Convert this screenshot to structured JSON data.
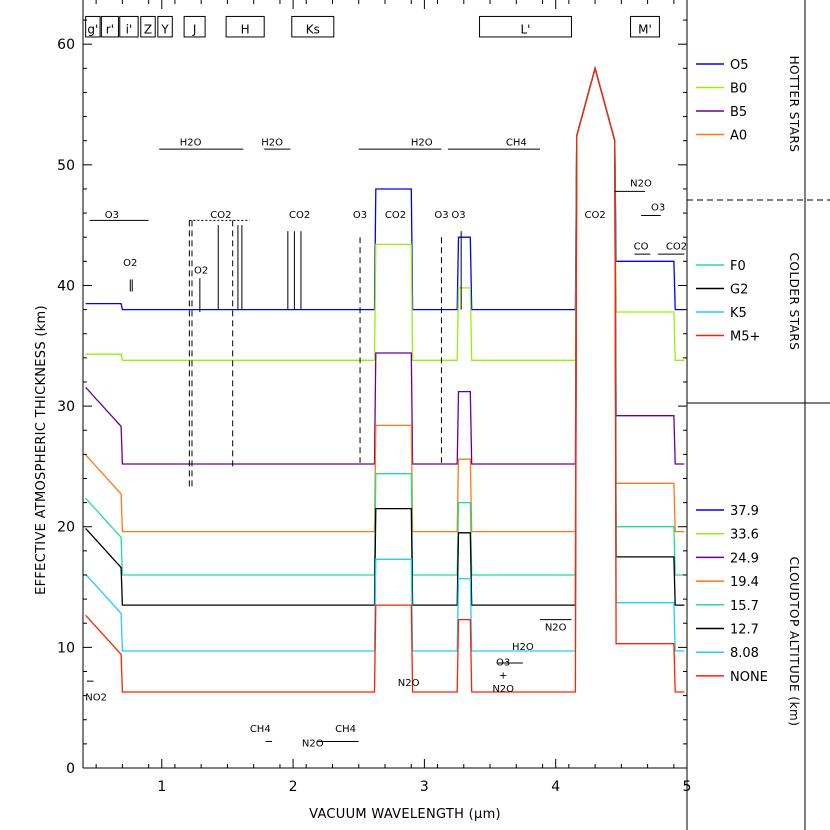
{
  "chart_data": {
    "type": "line",
    "xlabel": "VACUUM WAVELENGTH (μm)",
    "ylabel": "EFFECTIVE ATMOSPHERIC THICKNESS (km)",
    "xlim": [
      0.4,
      5.0
    ],
    "ylim": [
      0,
      63
    ],
    "x_ticks": [
      1,
      2,
      3,
      4,
      5
    ],
    "x_tick_labels": [
      "1",
      "2",
      "3",
      "4",
      "5"
    ],
    "y_ticks": [
      0,
      10,
      20,
      30,
      40,
      50,
      60
    ],
    "y_tick_labels": [
      "0",
      "10",
      "20",
      "30",
      "40",
      "50",
      "60"
    ],
    "filters": [
      {
        "label": "g'",
        "x0": 0.42,
        "x1": 0.53
      },
      {
        "label": "r'",
        "x0": 0.54,
        "x1": 0.67
      },
      {
        "label": "i'",
        "x0": 0.68,
        "x1": 0.82
      },
      {
        "label": "Z",
        "x0": 0.84,
        "x1": 0.95
      },
      {
        "label": "Y",
        "x0": 0.97,
        "x1": 1.08
      },
      {
        "label": "J",
        "x0": 1.17,
        "x1": 1.33
      },
      {
        "label": "H",
        "x0": 1.49,
        "x1": 1.78
      },
      {
        "label": "Ks",
        "x0": 1.99,
        "x1": 2.31
      },
      {
        "label": "L'",
        "x0": 3.42,
        "x1": 4.12
      },
      {
        "label": "M'",
        "x0": 4.57,
        "x1": 4.79
      }
    ],
    "molecule_labels": [
      {
        "text": "O3",
        "x": 0.62,
        "y": 45.6
      },
      {
        "text": "O2",
        "x": 0.76,
        "y": 41.6
      },
      {
        "text": "H2O",
        "x": 1.22,
        "y": 51.6
      },
      {
        "text": "H2O",
        "x": 1.84,
        "y": 51.6
      },
      {
        "text": "CO2",
        "x": 1.45,
        "y": 45.6
      },
      {
        "text": "O2",
        "x": 1.3,
        "y": 41.0
      },
      {
        "text": "CO2",
        "x": 2.05,
        "y": 45.6
      },
      {
        "text": "O3",
        "x": 2.51,
        "y": 45.6
      },
      {
        "text": "H2O",
        "x": 2.98,
        "y": 51.6
      },
      {
        "text": "CO2",
        "x": 2.78,
        "y": 45.6
      },
      {
        "text": "O3",
        "x": 3.13,
        "y": 45.6
      },
      {
        "text": "O3",
        "x": 3.26,
        "y": 45.6
      },
      {
        "text": "CH4",
        "x": 3.7,
        "y": 51.6
      },
      {
        "text": "CO2",
        "x": 4.3,
        "y": 45.6
      },
      {
        "text": "N2O",
        "x": 4.65,
        "y": 48.2
      },
      {
        "text": "O3",
        "x": 4.78,
        "y": 46.2
      },
      {
        "text": "CO",
        "x": 4.65,
        "y": 43.0
      },
      {
        "text": "CO2",
        "x": 4.92,
        "y": 43.0
      },
      {
        "text": "NO2",
        "x": 0.5,
        "y": 5.6
      },
      {
        "text": "CH4",
        "x": 1.75,
        "y": 3.0
      },
      {
        "text": "N2O",
        "x": 2.15,
        "y": 1.8
      },
      {
        "text": "CH4",
        "x": 2.4,
        "y": 3.0
      },
      {
        "text": "N2O",
        "x": 2.88,
        "y": 6.8
      },
      {
        "text": "O3",
        "x": 3.6,
        "y": 8.5
      },
      {
        "text": "+",
        "x": 3.6,
        "y": 7.4
      },
      {
        "text": "N2O",
        "x": 3.6,
        "y": 6.3
      },
      {
        "text": "H2O",
        "x": 3.75,
        "y": 9.8
      },
      {
        "text": "N2O",
        "x": 4.0,
        "y": 11.4
      }
    ],
    "series": [
      {
        "name": "O5",
        "group": "HOTTER STARS",
        "color": "#0000ff",
        "baseline": 38,
        "opacity": 1.0
      },
      {
        "name": "B0",
        "group": "HOTTER STARS",
        "color": "#99ee11",
        "baseline": 33.8,
        "opacity": 1.0
      },
      {
        "name": "B5",
        "group": "HOTTER STARS",
        "color": "#660099",
        "baseline": 25.2,
        "opacity": 1.0
      },
      {
        "name": "A0",
        "group": "HOTTER STARS",
        "color": "#ff7711",
        "baseline": 19.6,
        "opacity": 1.0
      },
      {
        "name": "F0",
        "group": "COLDER STARS",
        "color": "#22dd99",
        "baseline": 16.0,
        "opacity": 1.0
      },
      {
        "name": "G2",
        "group": "COLDER STARS",
        "color": "#000000",
        "baseline": 13.5,
        "opacity": 1.0
      },
      {
        "name": "K5",
        "group": "COLDER STARS",
        "color": "#22ccff",
        "baseline": 9.7,
        "opacity": 1.0
      },
      {
        "name": "M5+",
        "group": "COLDER STARS",
        "color": "#ff2200",
        "baseline": 6.3,
        "opacity": 1.0
      }
    ],
    "cloudtop": [
      {
        "label": "37.9",
        "color": "#0000ff"
      },
      {
        "label": "33.6",
        "color": "#99ee11"
      },
      {
        "label": "24.9",
        "color": "#660099"
      },
      {
        "label": "19.4",
        "color": "#ff7711"
      },
      {
        "label": "15.7",
        "color": "#22dd99"
      },
      {
        "label": "12.7",
        "color": "#000000"
      },
      {
        "label": "8.08",
        "color": "#22ccff"
      },
      {
        "label": "NONE",
        "color": "#ff2200"
      }
    ],
    "groups": [
      "HOTTER STARS",
      "COLDER STARS",
      "CLOUDTOP ALTITUDE (km)"
    ]
  }
}
